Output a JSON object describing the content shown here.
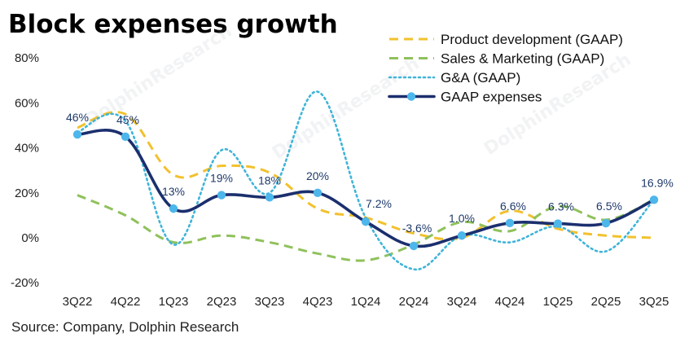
{
  "title": "Block expenses growth",
  "source": "Source: Company, Dolphin Research",
  "watermark": "DolphinResearch",
  "colors": {
    "product_development": "#F2C12E",
    "sales_marketing": "#8FC15B",
    "ga": "#3FB4D9",
    "gaap_expenses": "#1B2F6E",
    "marker": "#4DB6EA",
    "label_text": "#1F3A6B"
  },
  "chart_data": {
    "type": "line",
    "title": "Block expenses growth",
    "categories": [
      "3Q22",
      "4Q22",
      "1Q23",
      "2Q23",
      "3Q23",
      "4Q23",
      "1Q24",
      "2Q24",
      "3Q24",
      "4Q24",
      "1Q25",
      "2Q25",
      "3Q25"
    ],
    "ylim": [
      -20,
      80
    ],
    "yticks": [
      -20,
      0,
      20,
      40,
      60,
      80
    ],
    "ytick_labels": [
      "-20%",
      "0%",
      "20%",
      "40%",
      "60%",
      "80%"
    ],
    "grid": false,
    "legend_position": "top-right",
    "series": [
      {
        "name": "Product development (GAAP)",
        "key": "product_development",
        "style": "dashed",
        "values": [
          49,
          55,
          28,
          32,
          29,
          13,
          9,
          2,
          0,
          12,
          4,
          1,
          0
        ]
      },
      {
        "name": "Sales & Marketing (GAAP)",
        "key": "sales_marketing",
        "style": "dashed",
        "values": [
          19,
          10,
          -2,
          1,
          -2,
          -7,
          -10,
          -3,
          7,
          3,
          14,
          8,
          17
        ]
      },
      {
        "name": "G&A (GAAP)",
        "key": "ga",
        "style": "dotted",
        "values": [
          47,
          52,
          -3,
          39,
          20,
          65,
          9,
          -14,
          1,
          -2,
          5,
          -6,
          17
        ]
      },
      {
        "name": "GAAP expenses",
        "key": "gaap_expenses",
        "style": "solid",
        "markers": true,
        "values": [
          46,
          45,
          13,
          19,
          18,
          20,
          7.2,
          -3.6,
          1.0,
          6.6,
          6.3,
          6.5,
          16.9
        ],
        "labels": [
          "46%",
          "45%",
          "13%",
          "19%",
          "18%",
          "20%",
          "7.2%",
          "-3.6%",
          "1.0%",
          "6.6%",
          "6.3%",
          "6.5%",
          "16.9%"
        ]
      }
    ]
  }
}
